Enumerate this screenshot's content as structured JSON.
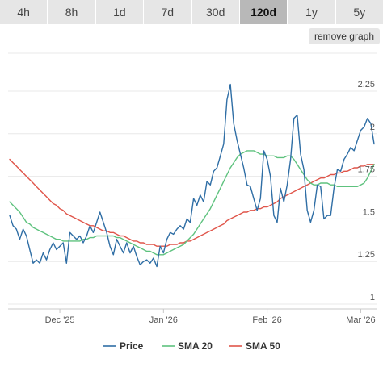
{
  "tabs": [
    {
      "label": "4h"
    },
    {
      "label": "8h"
    },
    {
      "label": "1d"
    },
    {
      "label": "7d"
    },
    {
      "label": "30d"
    },
    {
      "label": "120d"
    },
    {
      "label": "1y"
    },
    {
      "label": "5y"
    }
  ],
  "active_tab": "120d",
  "remove_graph_label": "remove graph",
  "chart_data": {
    "type": "line",
    "y_range": [
      1,
      2.3
    ],
    "y_ticks": [
      {
        "value": 2.25,
        "label": "2.25"
      },
      {
        "value": 2,
        "label": "2"
      },
      {
        "value": 1.75,
        "label": "1.75"
      },
      {
        "value": 1.5,
        "label": "1.5"
      },
      {
        "value": 1.25,
        "label": "1.25"
      },
      {
        "value": 1,
        "label": "1"
      }
    ],
    "x_ticks": [
      {
        "index": 15,
        "label": "Dec '25"
      },
      {
        "index": 46,
        "label": "Jan '26"
      },
      {
        "index": 77,
        "label": "Feb '26"
      },
      {
        "index": 105,
        "label": "Mar '26"
      }
    ],
    "grid": true,
    "legend_position": "bottom",
    "series": [
      {
        "name": "Price",
        "color": "#2f6ea5",
        "values": [
          1.52,
          1.46,
          1.44,
          1.38,
          1.44,
          1.4,
          1.32,
          1.24,
          1.26,
          1.24,
          1.3,
          1.26,
          1.32,
          1.36,
          1.32,
          1.34,
          1.36,
          1.24,
          1.42,
          1.4,
          1.38,
          1.4,
          1.36,
          1.4,
          1.46,
          1.42,
          1.48,
          1.54,
          1.48,
          1.42,
          1.34,
          1.29,
          1.38,
          1.34,
          1.3,
          1.36,
          1.3,
          1.34,
          1.28,
          1.23,
          1.25,
          1.26,
          1.24,
          1.27,
          1.22,
          1.34,
          1.3,
          1.38,
          1.42,
          1.41,
          1.44,
          1.46,
          1.44,
          1.5,
          1.48,
          1.62,
          1.58,
          1.64,
          1.6,
          1.72,
          1.7,
          1.78,
          1.8,
          1.87,
          1.94,
          2.2,
          2.29,
          2.06,
          1.96,
          1.88,
          1.8,
          1.7,
          1.69,
          1.62,
          1.55,
          1.62,
          1.9,
          1.85,
          1.75,
          1.52,
          1.48,
          1.68,
          1.6,
          1.7,
          1.85,
          2.09,
          2.11,
          1.88,
          1.79,
          1.55,
          1.48,
          1.55,
          1.7,
          1.69,
          1.5,
          1.52,
          1.52,
          1.68,
          1.79,
          1.78,
          1.85,
          1.88,
          1.92,
          1.9,
          1.96,
          2.02,
          2.04,
          2.09,
          2.06,
          1.94
        ]
      },
      {
        "name": "SMA 20",
        "color": "#5ec27e",
        "values": [
          1.6,
          1.58,
          1.56,
          1.54,
          1.51,
          1.48,
          1.47,
          1.45,
          1.44,
          1.43,
          1.42,
          1.41,
          1.4,
          1.39,
          1.38,
          1.38,
          1.37,
          1.37,
          1.37,
          1.37,
          1.37,
          1.37,
          1.38,
          1.38,
          1.39,
          1.39,
          1.4,
          1.4,
          1.4,
          1.4,
          1.4,
          1.4,
          1.39,
          1.39,
          1.38,
          1.37,
          1.36,
          1.35,
          1.34,
          1.33,
          1.32,
          1.31,
          1.31,
          1.3,
          1.29,
          1.29,
          1.29,
          1.3,
          1.31,
          1.32,
          1.33,
          1.34,
          1.35,
          1.37,
          1.39,
          1.41,
          1.44,
          1.47,
          1.5,
          1.53,
          1.56,
          1.6,
          1.64,
          1.68,
          1.72,
          1.76,
          1.8,
          1.83,
          1.86,
          1.88,
          1.89,
          1.9,
          1.9,
          1.9,
          1.89,
          1.88,
          1.88,
          1.87,
          1.87,
          1.87,
          1.86,
          1.86,
          1.86,
          1.87,
          1.87,
          1.85,
          1.82,
          1.79,
          1.76,
          1.73,
          1.71,
          1.7,
          1.7,
          1.71,
          1.71,
          1.71,
          1.7,
          1.7,
          1.69,
          1.69,
          1.69,
          1.69,
          1.69,
          1.69,
          1.69,
          1.7,
          1.71,
          1.74,
          1.78,
          1.82
        ]
      },
      {
        "name": "SMA 50",
        "color": "#e0554a",
        "values": [
          1.85,
          1.83,
          1.81,
          1.79,
          1.77,
          1.75,
          1.73,
          1.71,
          1.69,
          1.67,
          1.65,
          1.63,
          1.61,
          1.59,
          1.58,
          1.56,
          1.55,
          1.53,
          1.52,
          1.51,
          1.5,
          1.49,
          1.48,
          1.47,
          1.46,
          1.46,
          1.45,
          1.44,
          1.43,
          1.43,
          1.42,
          1.42,
          1.41,
          1.4,
          1.4,
          1.39,
          1.38,
          1.37,
          1.37,
          1.36,
          1.36,
          1.35,
          1.35,
          1.35,
          1.34,
          1.34,
          1.34,
          1.34,
          1.35,
          1.35,
          1.35,
          1.36,
          1.36,
          1.37,
          1.37,
          1.38,
          1.39,
          1.4,
          1.41,
          1.42,
          1.43,
          1.44,
          1.45,
          1.46,
          1.47,
          1.49,
          1.5,
          1.51,
          1.52,
          1.53,
          1.54,
          1.54,
          1.55,
          1.55,
          1.56,
          1.56,
          1.57,
          1.57,
          1.58,
          1.59,
          1.6,
          1.62,
          1.63,
          1.64,
          1.65,
          1.66,
          1.67,
          1.68,
          1.69,
          1.7,
          1.71,
          1.72,
          1.73,
          1.74,
          1.74,
          1.75,
          1.76,
          1.76,
          1.77,
          1.77,
          1.78,
          1.78,
          1.79,
          1.8,
          1.8,
          1.81,
          1.81,
          1.82,
          1.82,
          1.82
        ]
      }
    ]
  }
}
